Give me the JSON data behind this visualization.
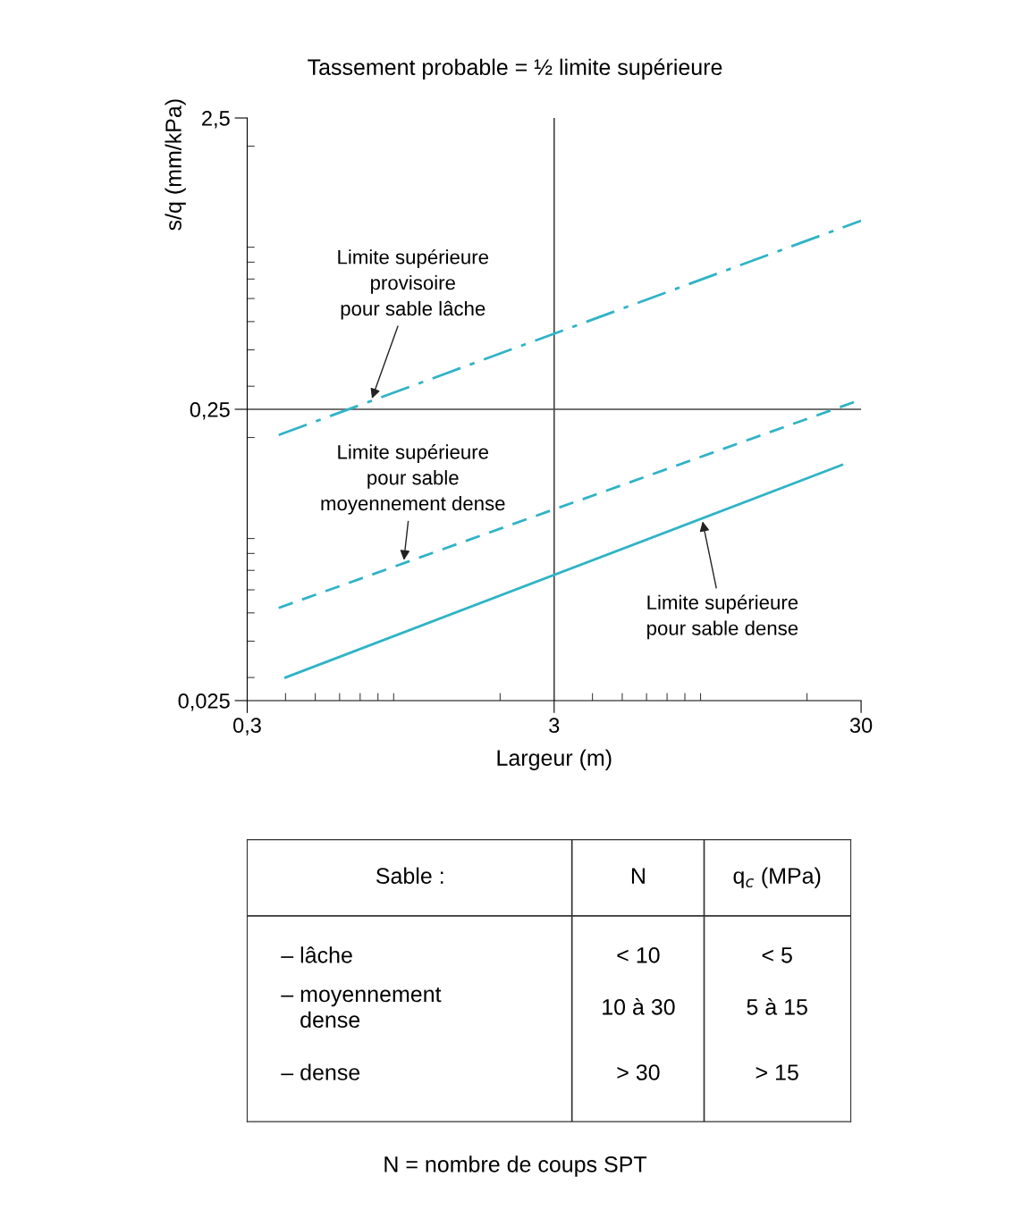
{
  "chart_data": [
    {
      "type": "line",
      "title": "Tassement probable = ½ limite supérieure",
      "xlabel": "Largeur (m)",
      "ylabel": "s/q (mm/kPa)",
      "log": "xy",
      "xlim": [
        0.3,
        30
      ],
      "ylim": [
        0.025,
        2.5
      ],
      "xticks": [
        {
          "value": 0.3,
          "label": "0,3"
        },
        3,
        30
      ],
      "yticks": [
        {
          "value": 0.025,
          "label": "0,025"
        },
        {
          "value": 0.25,
          "label": "0,25"
        },
        {
          "value": 2.5,
          "label": "2,5"
        }
      ],
      "grid": false,
      "marker": "none",
      "series": [
        {
          "color": "#2fb3c6",
          "line_style": "dashdot",
          "x": [
            0.38,
            30
          ],
          "values": [
            0.204,
            1.11
          ]
        },
        {
          "color": "#2fb3c6",
          "line_style": "dashed",
          "x": [
            0.38,
            30
          ],
          "values": [
            0.052,
            0.27
          ]
        },
        {
          "color": "#2fb3c6",
          "line_style": "solid",
          "x": [
            0.4,
            26
          ],
          "values": [
            0.03,
            0.161
          ]
        }
      ],
      "ref_lines": [
        {
          "axis": "x",
          "value": 3,
          "color": "#444444"
        },
        {
          "axis": "y",
          "value": 0.25,
          "color": "#444444"
        }
      ],
      "annotations": [
        {
          "text": "Limite supérieure\nprovisoire\npour sable lâche",
          "x": 0.76,
          "y": 0.267
        },
        {
          "text": "Limite supérieure\npour sable\nmoyennement dense",
          "x": 0.97,
          "y": 0.0744
        },
        {
          "text": "Limite supérieure\npour sable dense",
          "x": 9.1,
          "y": 0.105
        }
      ]
    },
    {
      "type": "other",
      "annotations": [
        "Sable :",
        "N",
        "q$_{c}$ (MPa)",
        "– lâche",
        "< 10",
        "< 5",
        "– moyennement\n   dense",
        "10 à 30",
        "5 à 15",
        "– dense",
        "> 30",
        "> 15",
        "N = nombre de coups SPT"
      ]
    }
  ]
}
